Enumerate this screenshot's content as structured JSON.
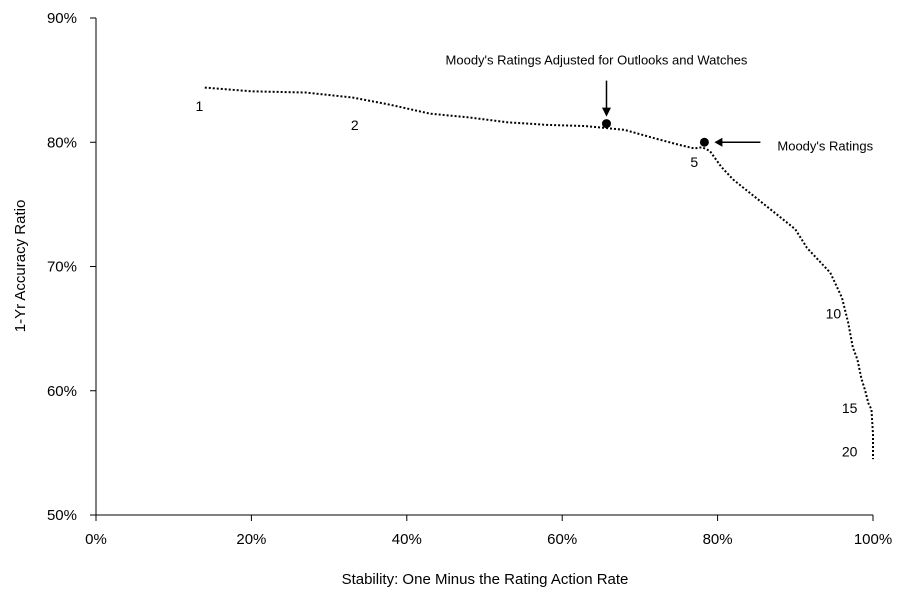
{
  "chart_data": {
    "type": "line",
    "title": "",
    "xlabel": "Stability:  One Minus the Rating Action Rate",
    "ylabel": "1-Yr Accuracy Ratio",
    "xlim": [
      0,
      100
    ],
    "ylim": [
      50,
      90
    ],
    "x_ticks": [
      0,
      20,
      40,
      60,
      80,
      100
    ],
    "y_ticks": [
      50,
      60,
      70,
      80,
      90
    ],
    "x_tick_labels": [
      "0%",
      "20%",
      "40%",
      "60%",
      "80%",
      "100%"
    ],
    "y_tick_labels": [
      "50%",
      "60%",
      "70%",
      "80%",
      "90%"
    ],
    "grid": false,
    "series": [
      {
        "name": "",
        "style": "dotted",
        "x": [
          14,
          20,
          27,
          33,
          38,
          43,
          48,
          53,
          58,
          63,
          68,
          72,
          75,
          77,
          78,
          79,
          80.5,
          82,
          84,
          86,
          88,
          90,
          91.5,
          93,
          94.5,
          96,
          96.8,
          97.4,
          98,
          98.5,
          99,
          99.4,
          99.8,
          100,
          100
        ],
        "y": [
          84.4,
          84.1,
          84.0,
          83.6,
          83.0,
          82.3,
          82.0,
          81.6,
          81.4,
          81.3,
          81.0,
          80.3,
          79.8,
          79.5,
          79.6,
          79.3,
          78.0,
          77.0,
          76.0,
          75.0,
          74.0,
          73.0,
          71.5,
          70.5,
          69.5,
          67.5,
          65.5,
          63.5,
          62.5,
          61.0,
          60.0,
          59.0,
          58.5,
          56.5,
          54.5
        ]
      }
    ],
    "highlight_points": [
      {
        "label": "Moody's Ratings Adjusted for Outlooks and Watches",
        "x": 65.7,
        "y": 81.5
      },
      {
        "label": "Moody's Ratings",
        "x": 78.3,
        "y": 80.0
      }
    ],
    "point_labels": [
      {
        "text": "1",
        "x": 13.3,
        "y": 82.5
      },
      {
        "text": "2",
        "x": 33.3,
        "y": 81.0
      },
      {
        "text": "5",
        "x": 77.0,
        "y": 78.0
      },
      {
        "text": "10",
        "x": 94.9,
        "y": 65.8
      },
      {
        "text": "15",
        "x": 97.0,
        "y": 58.2
      },
      {
        "text": "20",
        "x": 97.0,
        "y": 54.7
      }
    ]
  }
}
